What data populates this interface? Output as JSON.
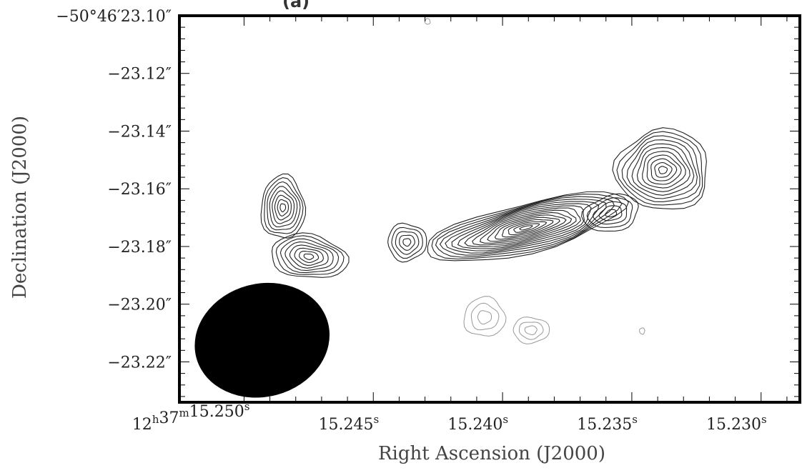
{
  "chart_data": {
    "type": "contour",
    "title": "(a)",
    "xlabel": "Right Ascension (J2000)",
    "ylabel": "Declination (J2000)",
    "xlim": [
      15.2525,
      15.2285
    ],
    "ylim": [
      -23.234,
      -23.1
    ],
    "x_ticks": [
      {
        "value": 15.25,
        "label_main": "12",
        "sup1": "h",
        "mid": "37",
        "sup2": "m",
        "tail": "15.250",
        "sup3": "s"
      },
      {
        "value": 15.245,
        "tail": "15.245",
        "sup3": "s"
      },
      {
        "value": 15.24,
        "tail": "15.240",
        "sup3": "s"
      },
      {
        "value": 15.235,
        "tail": "15.235",
        "sup3": "s"
      },
      {
        "value": 15.23,
        "tail": "15.230",
        "sup3": "s"
      }
    ],
    "y_ticks": [
      {
        "value": -23.1,
        "label": "−50°46′23.10″"
      },
      {
        "value": -23.12,
        "label": "−23.12″"
      },
      {
        "value": -23.14,
        "label": "−23.14″"
      },
      {
        "value": -23.16,
        "label": "−23.16″"
      },
      {
        "value": -23.18,
        "label": "−23.18″"
      },
      {
        "value": -23.2,
        "label": "−23.20″"
      },
      {
        "value": -23.22,
        "label": "−23.22″"
      }
    ],
    "beam": {
      "ra": 15.2493,
      "dec": -23.2125,
      "major_arcsec": 0.0118,
      "minor_arcsec": 0.0098,
      "pa_deg": -15
    },
    "blobs": [
      {
        "name": "west-lobe-upper",
        "ra": 15.2485,
        "dec": -23.1665,
        "a": 0.00085,
        "b": 0.011,
        "angle": 0,
        "levels": 8,
        "scale": 1.0
      },
      {
        "name": "west-lobe-lower",
        "ra": 15.2475,
        "dec": -23.1835,
        "a": 0.0015,
        "b": 0.0075,
        "angle": -8,
        "levels": 8,
        "scale": 1.0
      },
      {
        "name": "knot",
        "ra": 15.2437,
        "dec": -23.1785,
        "a": 0.00075,
        "b": 0.0065,
        "angle": 0,
        "levels": 5,
        "scale": 1.0
      },
      {
        "name": "core",
        "ra": 15.2391,
        "dec": -23.1735,
        "a": 0.004,
        "b": 0.0085,
        "angle": 14,
        "levels": 16,
        "scale": 1.0
      },
      {
        "name": "east-knot",
        "ra": 15.2358,
        "dec": -23.1685,
        "a": 0.0011,
        "b": 0.0062,
        "angle": 14,
        "levels": 5,
        "scale": 1.0
      },
      {
        "name": "east-lobe",
        "ra": 15.2338,
        "dec": -23.1535,
        "a": 0.0018,
        "b": 0.014,
        "angle": 0,
        "levels": 11,
        "scale": 1.0
      }
    ],
    "negative_contours": [
      {
        "ra": 15.2407,
        "dec": -23.2045,
        "a": 0.0008,
        "b": 0.0068,
        "levels": 3
      },
      {
        "ra": 15.2389,
        "dec": -23.209,
        "a": 0.0007,
        "b": 0.0045,
        "levels": 3
      },
      {
        "ra": 15.2346,
        "dec": -23.2093,
        "a": 0.0001,
        "b": 0.0011,
        "levels": 1
      },
      {
        "ra": 15.2429,
        "dec": -23.102,
        "a": 0.0001,
        "b": 0.001,
        "levels": 1
      }
    ],
    "grid": false,
    "legend": "none"
  }
}
